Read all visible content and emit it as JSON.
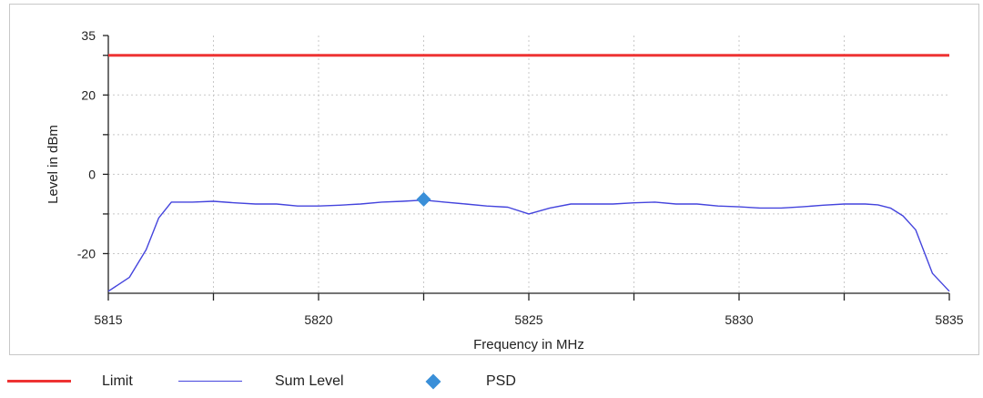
{
  "chart_data": {
    "type": "line",
    "xlabel": "Frequency in MHz",
    "ylabel": "Level in dBm",
    "xlim": [
      5815,
      5835
    ],
    "ylim": [
      -30,
      35
    ],
    "x_ticks": [
      5815,
      5820,
      5825,
      5830,
      5835
    ],
    "y_ticks": [
      -20,
      0,
      20,
      35
    ],
    "grid": true,
    "legend_position": "bottom",
    "series": [
      {
        "name": "Limit",
        "type": "line",
        "color": "#ee3333",
        "x": [
          5815,
          5835
        ],
        "y": [
          30,
          30
        ]
      },
      {
        "name": "Sum Level",
        "type": "line",
        "color": "#4444dd",
        "x": [
          5815,
          5815.5,
          5815.9,
          5816.2,
          5816.5,
          5817,
          5817.5,
          5818,
          5818.5,
          5819,
          5819.5,
          5820,
          5820.5,
          5821,
          5821.5,
          5822,
          5822.5,
          5823,
          5823.5,
          5824,
          5824.5,
          5825,
          5825.5,
          5826,
          5826.5,
          5827,
          5827.5,
          5828,
          5828.5,
          5829,
          5829.5,
          5830,
          5830.5,
          5831,
          5831.5,
          5832,
          5832.5,
          5833,
          5833.3,
          5833.6,
          5833.9,
          5834.2,
          5834.6,
          5835
        ],
        "y": [
          -29.5,
          -26,
          -19,
          -11,
          -7,
          -7,
          -6.8,
          -7.2,
          -7.5,
          -7.5,
          -8,
          -8,
          -7.8,
          -7.5,
          -7,
          -6.8,
          -6.5,
          -7,
          -7.5,
          -8,
          -8.3,
          -10,
          -8.5,
          -7.5,
          -7.5,
          -7.5,
          -7.2,
          -7,
          -7.5,
          -7.5,
          -8,
          -8.2,
          -8.5,
          -8.5,
          -8.2,
          -7.8,
          -7.5,
          -7.5,
          -7.7,
          -8.5,
          -10.5,
          -14,
          -25,
          -29.5
        ]
      },
      {
        "name": "PSD",
        "type": "scatter",
        "color": "#3a8fd8",
        "marker": "diamond",
        "x": [
          5822.5
        ],
        "y": [
          -6.3
        ]
      }
    ]
  },
  "legend": {
    "items": [
      {
        "label": "Limit",
        "color": "#ee3333",
        "kind": "line"
      },
      {
        "label": "Sum Level",
        "color": "#4444dd",
        "kind": "line"
      },
      {
        "label": "PSD",
        "color": "#3a8fd8",
        "kind": "diamond"
      }
    ]
  }
}
